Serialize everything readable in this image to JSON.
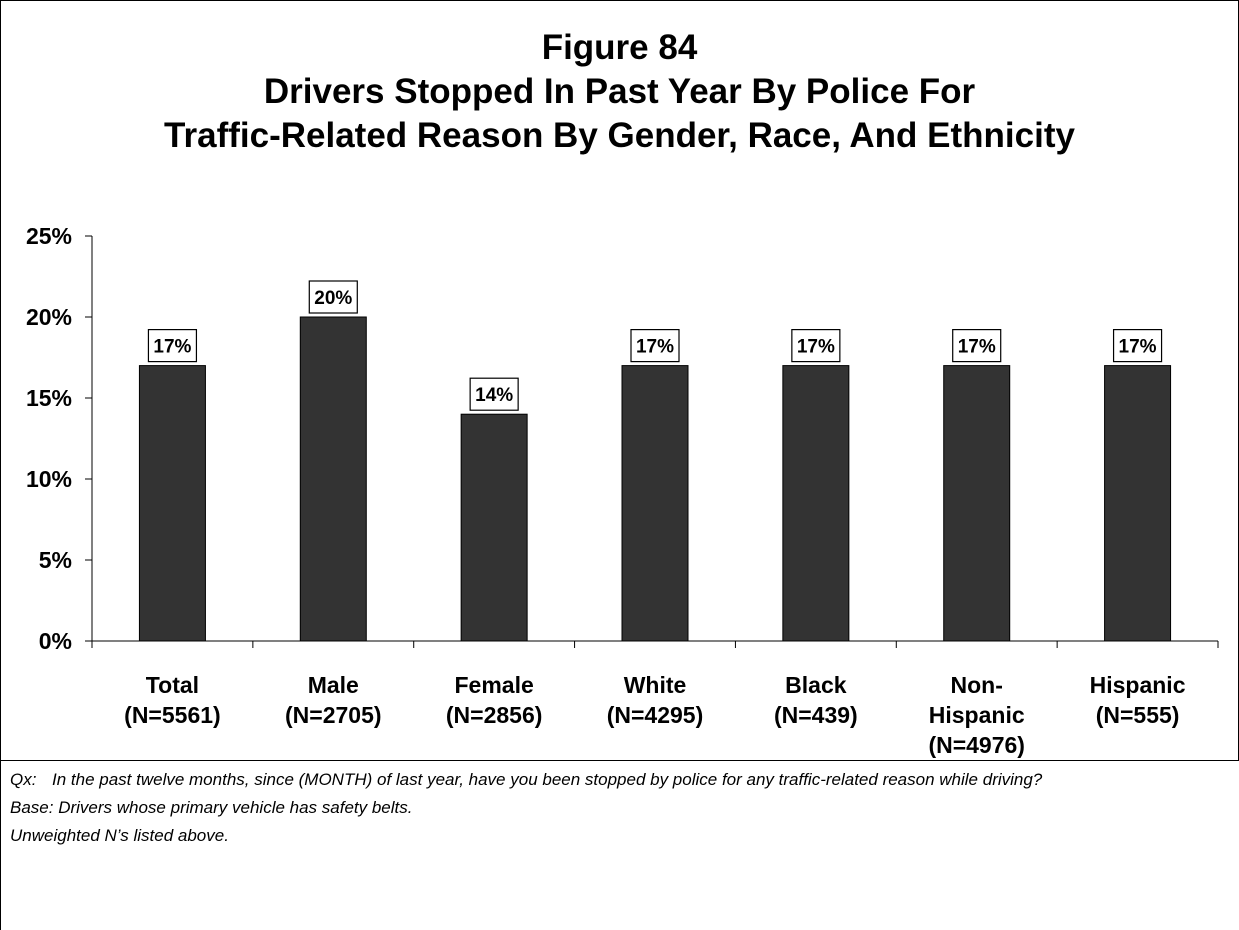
{
  "figure_label": "Figure 84",
  "title_line1": "Drivers Stopped In Past Year By Police For",
  "title_line2": "Traffic-Related Reason By Gender, Race, And Ethnicity",
  "chart_data": {
    "type": "bar",
    "title": "Figure 84 Drivers Stopped In Past Year By Police For Traffic-Related Reason By Gender, Race, And Ethnicity",
    "categories": [
      [
        "Total",
        "(N=5561)"
      ],
      [
        "Male",
        "(N=2705)"
      ],
      [
        "Female",
        "(N=2856)"
      ],
      [
        "White",
        "(N=4295)"
      ],
      [
        "Black",
        "(N=439)"
      ],
      [
        "Non-",
        "Hispanic",
        "(N=4976)"
      ],
      [
        "Hispanic",
        "(N=555)"
      ]
    ],
    "values": [
      17,
      20,
      14,
      17,
      17,
      17,
      17
    ],
    "data_labels": [
      "17%",
      "20%",
      "14%",
      "17%",
      "17%",
      "17%",
      "17%"
    ],
    "ylim": [
      0,
      25
    ],
    "yticks": [
      "0%",
      "5%",
      "10%",
      "15%",
      "20%",
      "25%"
    ],
    "bar_color": "#333333"
  },
  "notes": {
    "q_key": "Qx:",
    "q_text": "In the past twelve months, since (MONTH) of last year, have you been stopped by police for any traffic-related reason while driving?",
    "base": "Base:  Drivers whose primary vehicle has safety belts.",
    "unweighted": "Unweighted N’s listed above."
  }
}
